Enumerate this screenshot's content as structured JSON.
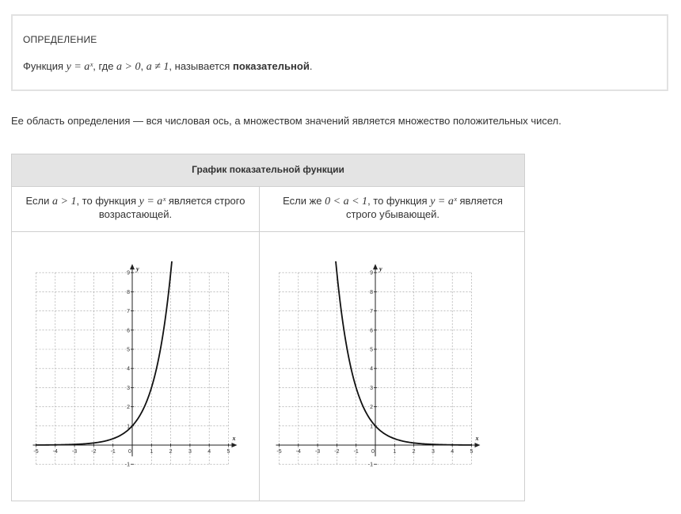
{
  "definition": {
    "title": "ОПРЕДЕЛЕНИЕ",
    "text_prefix": "Функция ",
    "formula": "y = aˣ",
    "text_where": ", где ",
    "condition1": "a > 0",
    "comma": ", ",
    "condition2": "a ≠ 1",
    "text_called": ", называется ",
    "bold_term": "показательной",
    "period": "."
  },
  "domain_text": "Ее область определения — вся числовая ось, а множеством значений является множество положительных чисел.",
  "table": {
    "header": "График показательной функции",
    "left_caption": {
      "prefix": "Если ",
      "condition": "a > 1",
      "middle": ", то функция ",
      "formula": "y = aˣ",
      "suffix": " является строго возрастающей."
    },
    "right_caption": {
      "prefix": "Если же ",
      "condition": "0 < a < 1",
      "middle": ", то функция ",
      "formula": "y = aˣ",
      "suffix": " является строго убывающей."
    }
  },
  "chart_data": [
    {
      "type": "line",
      "xlabel": "x",
      "ylabel": "y",
      "xlim": [
        -5,
        5
      ],
      "ylim": [
        -1,
        9
      ],
      "x_ticks": [
        -5,
        -4,
        -3,
        -2,
        -1,
        0,
        1,
        2,
        3,
        4,
        5
      ],
      "y_ticks": [
        -1,
        1,
        2,
        3,
        4,
        5,
        6,
        7,
        8,
        9
      ],
      "grid": true,
      "series": [
        {
          "x": [
            -5,
            -4,
            -3,
            -2,
            -1,
            0,
            1,
            2,
            3,
            3.17
          ],
          "values": [
            0.004,
            0.012,
            0.037,
            0.111,
            0.333,
            1,
            2,
            4,
            7.5,
            9
          ]
        }
      ]
    },
    {
      "type": "line",
      "xlabel": "x",
      "ylabel": "y",
      "xlim": [
        -5,
        5
      ],
      "ylim": [
        -1,
        9
      ],
      "x_ticks": [
        -5,
        -4,
        -3,
        -2,
        -1,
        0,
        1,
        2,
        3,
        4,
        5
      ],
      "y_ticks": [
        -1,
        1,
        2,
        3,
        4,
        5,
        6,
        7,
        8,
        9
      ],
      "grid": true,
      "series": [
        {
          "x": [
            -3.17,
            -3,
            -2,
            -1,
            0,
            1,
            2,
            3,
            4,
            5
          ],
          "values": [
            9,
            7.5,
            4,
            2,
            1,
            0.333,
            0.111,
            0.037,
            0.012,
            0.004
          ]
        }
      ]
    }
  ]
}
